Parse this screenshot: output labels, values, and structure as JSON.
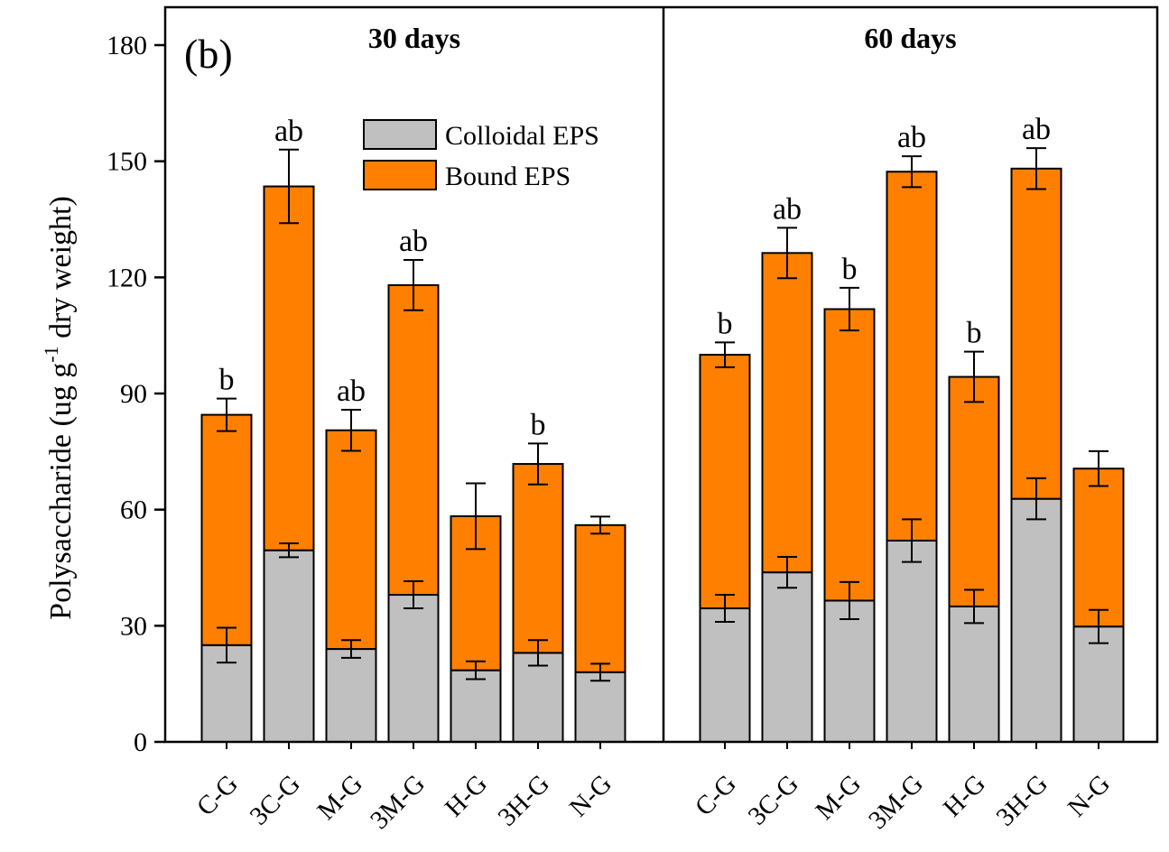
{
  "chart_data": {
    "type": "bar",
    "stacked": true,
    "panel_label": "(b)",
    "ylabel": "Polysaccharide (ug g-1 dry weight)",
    "ylabel_parts": {
      "pre": "Polysaccharide (ug g",
      "sup": "-1",
      "post": " dry weight)"
    },
    "ylim": [
      0,
      180
    ],
    "yticks": [
      0,
      30,
      60,
      90,
      120,
      150,
      180
    ],
    "colors": {
      "colloidal": "#c0c0c0",
      "bound": "#ff8000"
    },
    "legend": {
      "position": "top-center",
      "entries": [
        "Colloidal EPS",
        "Bound EPS"
      ]
    },
    "groups": [
      {
        "title": "30 days",
        "categories": [
          "C-G",
          "3C-G",
          "M-G",
          "3M-G",
          "H-G",
          "3H-G",
          "N-G"
        ],
        "series": [
          {
            "name": "Colloidal EPS",
            "values": [
              25.0,
              49.5,
              24.0,
              38.0,
              18.5,
              23.0,
              18.0
            ],
            "errors": [
              4.5,
              1.8,
              2.3,
              3.5,
              2.3,
              3.3,
              2.2
            ]
          },
          {
            "name": "Bound EPS",
            "values": [
              59.5,
              94.0,
              56.5,
              80.0,
              39.8,
              48.8,
              38.0
            ],
            "errors": [
              4.2,
              9.5,
              5.3,
              6.5,
              8.5,
              5.3,
              2.2
            ]
          }
        ],
        "significance": [
          "b",
          "ab",
          "ab",
          "ab",
          "",
          "b",
          ""
        ]
      },
      {
        "title": "60 days",
        "categories": [
          "C-G",
          "3C-G",
          "M-G",
          "3M-G",
          "H-G",
          "3H-G",
          "N-G"
        ],
        "series": [
          {
            "name": "Colloidal EPS",
            "values": [
              34.5,
              43.8,
              36.5,
              52.0,
              35.0,
              62.8,
              29.8
            ],
            "errors": [
              3.5,
              4.0,
              4.8,
              5.5,
              4.3,
              5.3,
              4.3
            ]
          },
          {
            "name": "Bound EPS",
            "values": [
              65.5,
              82.5,
              75.3,
              95.3,
              59.3,
              85.3,
              40.8
            ],
            "errors": [
              3.2,
              6.5,
              5.5,
              4.0,
              6.5,
              5.3,
              4.5
            ]
          }
        ],
        "significance": [
          "b",
          "ab",
          "b",
          "ab",
          "b",
          "ab",
          ""
        ]
      }
    ]
  }
}
